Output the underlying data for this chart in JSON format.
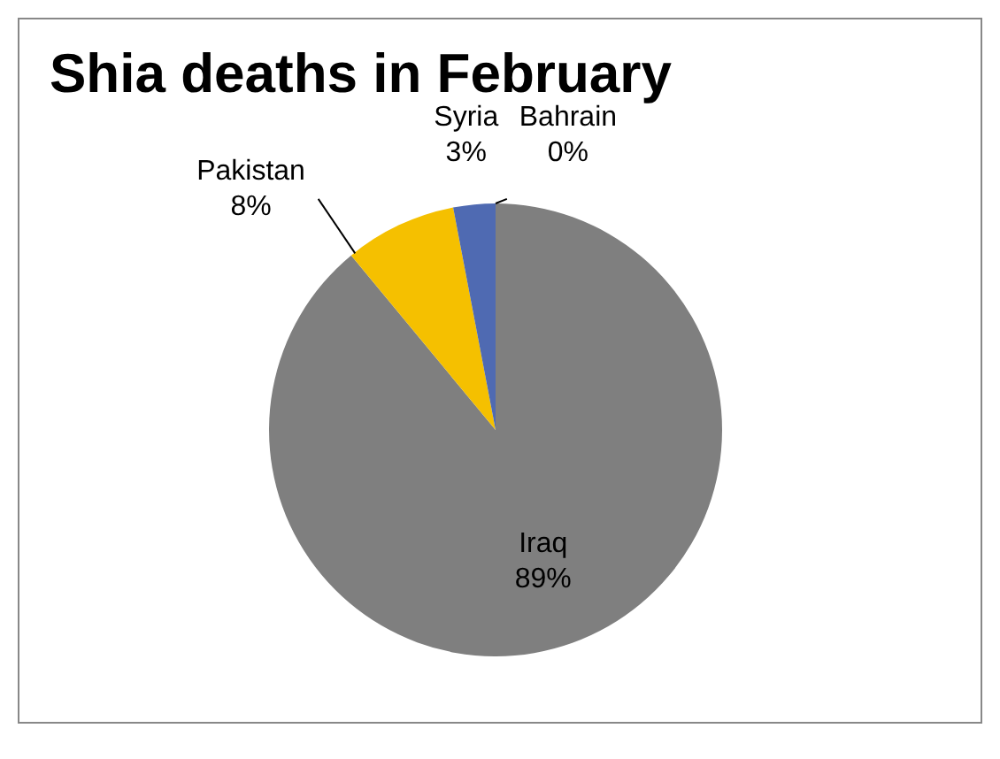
{
  "chart_data": {
    "type": "pie",
    "title": "Shia deaths in February",
    "categories": [
      "Iraq",
      "Pakistan",
      "Syria",
      "Bahrain"
    ],
    "values": [
      89,
      8,
      3,
      0
    ],
    "colors": [
      "#7f7f7f",
      "#f5c000",
      "#4f6ab2",
      "#4f81bd"
    ],
    "value_labels": [
      "89%",
      "8%",
      "3%",
      "0%"
    ],
    "legend": false
  }
}
